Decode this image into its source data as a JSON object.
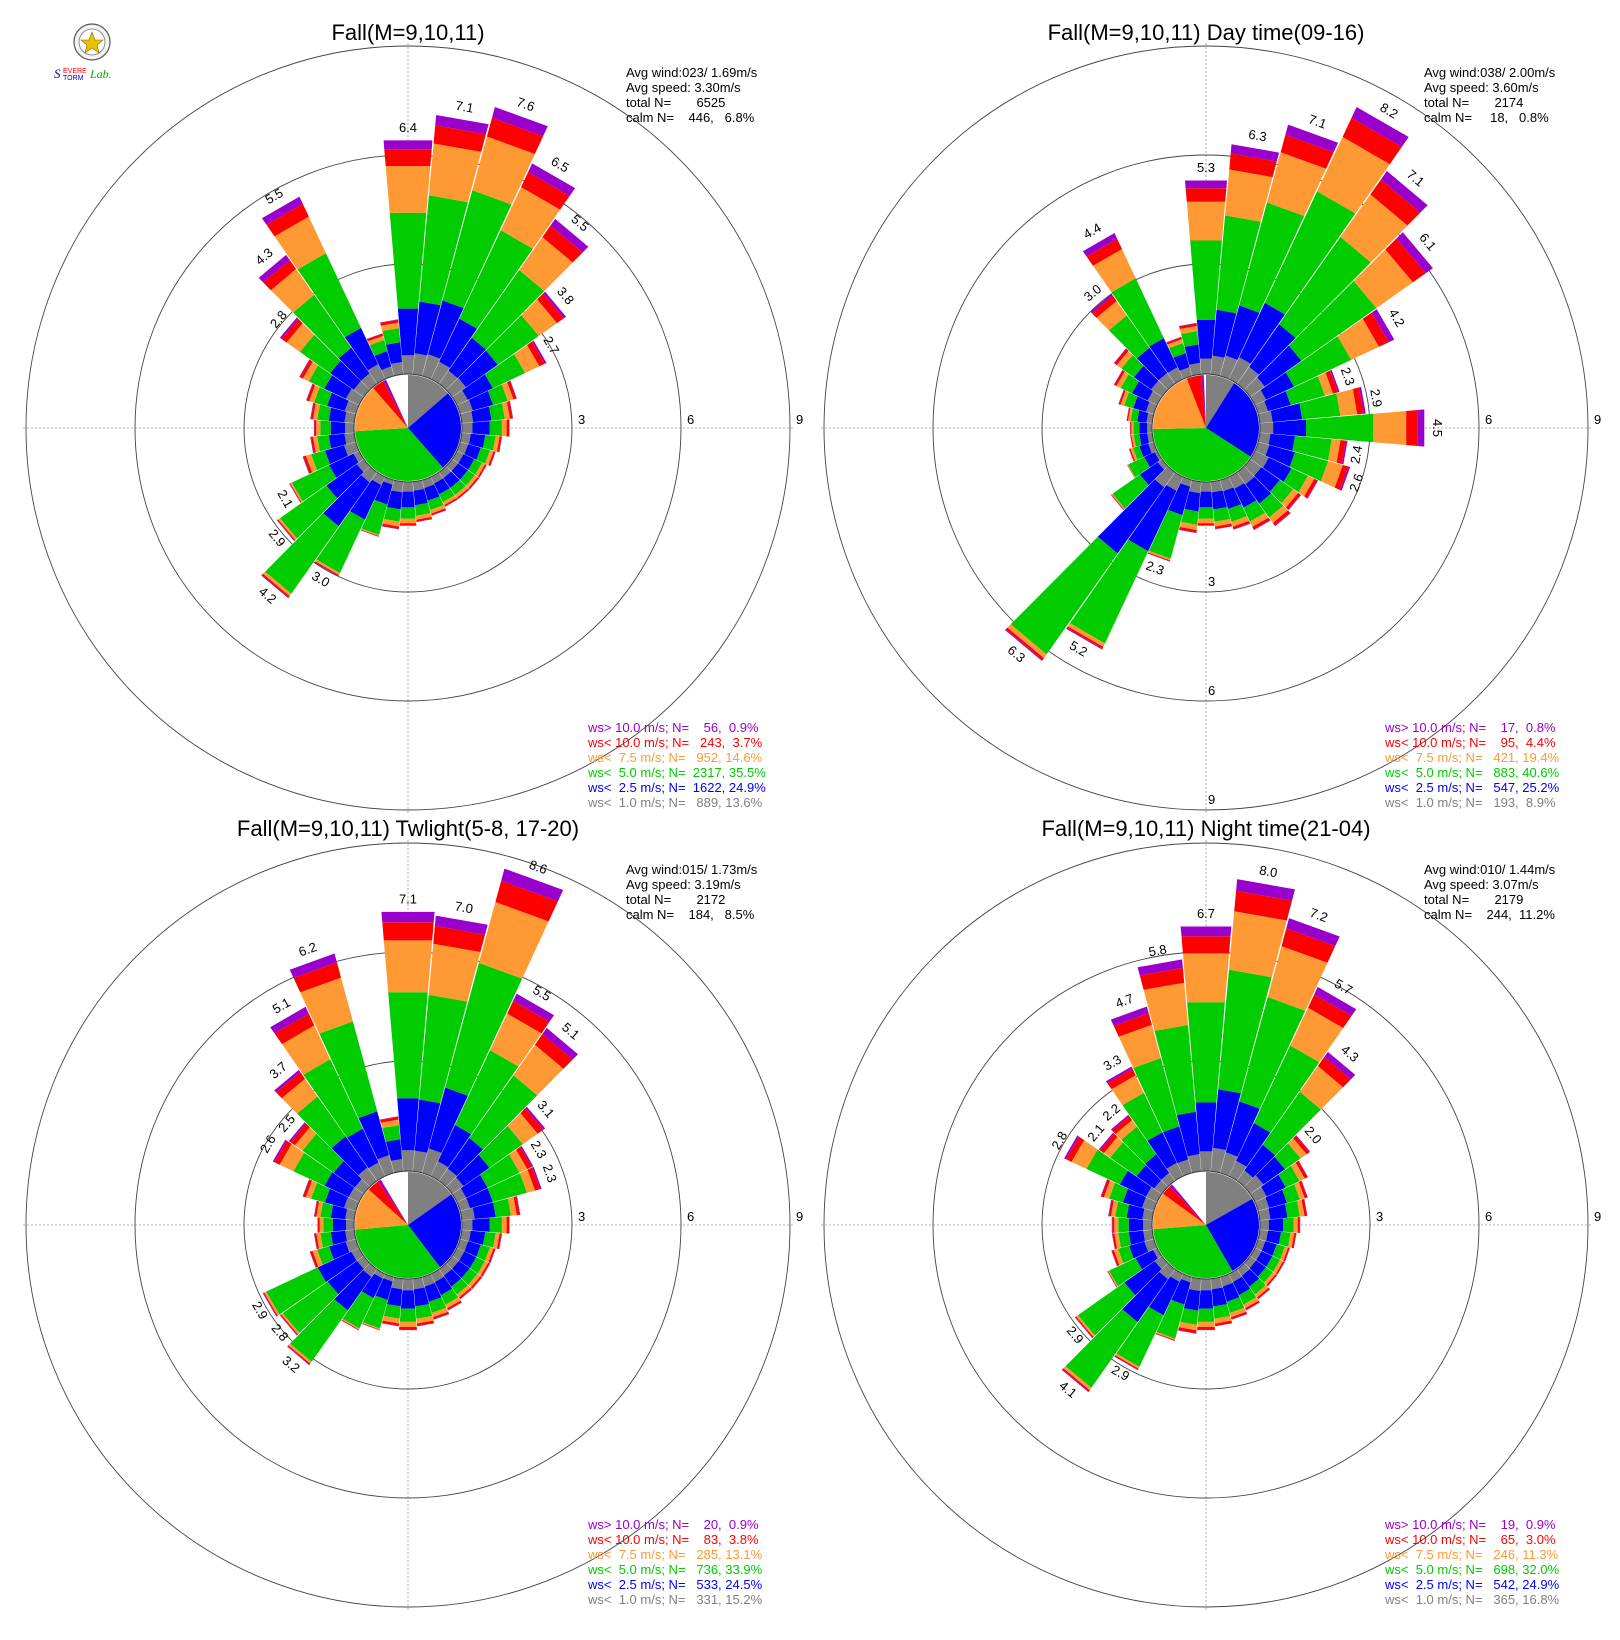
{
  "colors": {
    "gt10": "#9900cc",
    "lt10": "#ff0000",
    "lt7_5": "#ff9933",
    "lt5": "#00cc00",
    "lt2_5": "#0000ff",
    "lt1": "#808080"
  },
  "logo": {
    "text": "Severe Storm Lab."
  },
  "chart_data": [
    {
      "type": "windrose",
      "title": "Fall(M=9,10,11)",
      "rings": [
        3,
        6,
        9
      ],
      "stats": [
        "Avg wind:023/ 1.69m/s",
        "Avg speed: 3.30m/s",
        "total N=       6525",
        "calm N=    446,   6.8%"
      ],
      "legend": [
        {
          "cls": "gt10",
          "text": "ws> 10.0 m/s; N=    56,  0.9%"
        },
        {
          "cls": "lt10",
          "text": "ws< 10.0 m/s; N=   243,  3.7%"
        },
        {
          "cls": "lt7_5",
          "text": "ws<  7.5 m/s; N=   952, 14.6%"
        },
        {
          "cls": "lt5",
          "text": "ws<  5.0 m/s; N=  2317, 35.5%"
        },
        {
          "cls": "lt2_5",
          "text": "ws<  2.5 m/s; N=  1622, 24.9%"
        },
        {
          "cls": "lt1",
          "text": "ws<  1.0 m/s; N=   889, 13.6%"
        }
      ],
      "pie": [
        0.136,
        0.249,
        0.355,
        0.146,
        0.037,
        0.009
      ],
      "spokes": [
        {
          "dir": 0,
          "total": 6.4,
          "label": "6.4"
        },
        {
          "dir": 10,
          "total": 7.1,
          "label": "7.1"
        },
        {
          "dir": 20,
          "total": 7.6,
          "label": "7.6"
        },
        {
          "dir": 30,
          "total": 6.5,
          "label": "6.5"
        },
        {
          "dir": 40,
          "total": 5.5,
          "label": "5.5"
        },
        {
          "dir": 50,
          "total": 3.8,
          "label": "3.8"
        },
        {
          "dir": 60,
          "total": 2.7,
          "label": "2.7"
        },
        {
          "dir": 70,
          "total": 1.6
        },
        {
          "dir": 80,
          "total": 1.4
        },
        {
          "dir": 90,
          "total": 1.3
        },
        {
          "dir": 100,
          "total": 1.1
        },
        {
          "dir": 110,
          "total": 1.0
        },
        {
          "dir": 120,
          "total": 0.9
        },
        {
          "dir": 130,
          "total": 0.9
        },
        {
          "dir": 140,
          "total": 0.9
        },
        {
          "dir": 150,
          "total": 0.9
        },
        {
          "dir": 160,
          "total": 1.0
        },
        {
          "dir": 170,
          "total": 1.1
        },
        {
          "dir": 180,
          "total": 1.2
        },
        {
          "dir": 190,
          "total": 1.3
        },
        {
          "dir": 200,
          "total": 1.6
        },
        {
          "dir": 210,
          "total": 3.0,
          "label": "3.0"
        },
        {
          "dir": 220,
          "total": 4.2,
          "label": "4.2"
        },
        {
          "dir": 230,
          "total": 2.9,
          "label": "2.9"
        },
        {
          "dir": 240,
          "total": 2.1,
          "label": "2.1"
        },
        {
          "dir": 250,
          "total": 1.5
        },
        {
          "dir": 260,
          "total": 1.2
        },
        {
          "dir": 270,
          "total": 1.1
        },
        {
          "dir": 280,
          "total": 1.2
        },
        {
          "dir": 290,
          "total": 1.4
        },
        {
          "dir": 300,
          "total": 1.8
        },
        {
          "dir": 310,
          "total": 2.8,
          "label": "2.8"
        },
        {
          "dir": 320,
          "total": 4.3,
          "label": "4.3"
        },
        {
          "dir": 330,
          "total": 5.5,
          "label": "5.5"
        },
        {
          "dir": 340,
          "total": 1.2
        },
        {
          "dir": 350,
          "total": 1.5
        }
      ]
    },
    {
      "type": "windrose",
      "title": "Fall(M=9,10,11) Day time(09-16)",
      "rings": [
        3,
        6,
        9
      ],
      "stats": [
        "Avg wind:038/ 2.00m/s",
        "Avg speed: 3.60m/s",
        "total N=       2174",
        "calm N=     18,   0.8%"
      ],
      "legend": [
        {
          "cls": "gt10",
          "text": "ws> 10.0 m/s; N=    17,  0.8%"
        },
        {
          "cls": "lt10",
          "text": "ws< 10.0 m/s; N=    95,  4.4%"
        },
        {
          "cls": "lt7_5",
          "text": "ws<  7.5 m/s; N=   421, 19.4%"
        },
        {
          "cls": "lt5",
          "text": "ws<  5.0 m/s; N=   883, 40.6%"
        },
        {
          "cls": "lt2_5",
          "text": "ws<  2.5 m/s; N=   547, 25.2%"
        },
        {
          "cls": "lt1",
          "text": "ws<  1.0 m/s; N=   193,  8.9%"
        }
      ],
      "pie": [
        0.089,
        0.252,
        0.406,
        0.194,
        0.044,
        0.008
      ],
      "spokes": [
        {
          "dir": 0,
          "total": 5.3,
          "label": "5.3"
        },
        {
          "dir": 10,
          "total": 6.3,
          "label": "6.3"
        },
        {
          "dir": 20,
          "total": 7.1,
          "label": "7.1"
        },
        {
          "dir": 30,
          "total": 8.2,
          "label": "8.2"
        },
        {
          "dir": 40,
          "total": 7.1,
          "label": "7.1"
        },
        {
          "dir": 50,
          "total": 6.1,
          "label": "6.1"
        },
        {
          "dir": 60,
          "total": 4.2,
          "label": "4.2"
        },
        {
          "dir": 70,
          "total": 2.3,
          "label": "2.3"
        },
        {
          "dir": 80,
          "total": 2.9,
          "label": "2.9"
        },
        {
          "dir": 90,
          "total": 4.5,
          "label": "4.5"
        },
        {
          "dir": 100,
          "total": 2.4,
          "label": "2.4"
        },
        {
          "dir": 110,
          "total": 2.6,
          "label": "2.6"
        },
        {
          "dir": 120,
          "total": 1.9
        },
        {
          "dir": 130,
          "total": 1.7
        },
        {
          "dir": 140,
          "total": 1.8
        },
        {
          "dir": 150,
          "total": 1.6
        },
        {
          "dir": 160,
          "total": 1.4
        },
        {
          "dir": 170,
          "total": 1.3
        },
        {
          "dir": 180,
          "total": 1.2
        },
        {
          "dir": 190,
          "total": 1.4
        },
        {
          "dir": 200,
          "total": 2.3,
          "label": "2.3"
        },
        {
          "dir": 210,
          "total": 5.2,
          "label": "5.2"
        },
        {
          "dir": 220,
          "total": 6.3,
          "label": "6.3"
        },
        {
          "dir": 230,
          "total": 1.7
        },
        {
          "dir": 240,
          "total": 0.9
        },
        {
          "dir": 250,
          "total": 0.7
        },
        {
          "dir": 260,
          "total": 0.6
        },
        {
          "dir": 270,
          "total": 0.6
        },
        {
          "dir": 280,
          "total": 0.7
        },
        {
          "dir": 290,
          "total": 1.0
        },
        {
          "dir": 300,
          "total": 1.3
        },
        {
          "dir": 310,
          "total": 1.6
        },
        {
          "dir": 320,
          "total": 3.0,
          "label": "3.0"
        },
        {
          "dir": 330,
          "total": 4.4,
          "label": "4.4"
        },
        {
          "dir": 340,
          "total": 1.1
        },
        {
          "dir": 350,
          "total": 1.4
        }
      ]
    },
    {
      "type": "windrose",
      "title": "Fall(M=9,10,11) Twlight(5-8, 17-20)",
      "rings": [
        3,
        6,
        9
      ],
      "stats": [
        "Avg wind:015/ 1.73m/s",
        "Avg speed: 3.19m/s",
        "total N=       2172",
        "calm N=    184,   8.5%"
      ],
      "legend": [
        {
          "cls": "gt10",
          "text": "ws> 10.0 m/s; N=    20,  0.9%"
        },
        {
          "cls": "lt10",
          "text": "ws< 10.0 m/s; N=    83,  3.8%"
        },
        {
          "cls": "lt7_5",
          "text": "ws<  7.5 m/s; N=   285, 13.1%"
        },
        {
          "cls": "lt5",
          "text": "ws<  5.0 m/s; N=   736, 33.9%"
        },
        {
          "cls": "lt2_5",
          "text": "ws<  2.5 m/s; N=   533, 24.5%"
        },
        {
          "cls": "lt1",
          "text": "ws<  1.0 m/s; N=   331, 15.2%"
        }
      ],
      "pie": [
        0.152,
        0.245,
        0.339,
        0.131,
        0.038,
        0.009
      ],
      "spokes": [
        {
          "dir": 0,
          "total": 7.1,
          "label": "7.1"
        },
        {
          "dir": 10,
          "total": 7.0,
          "label": "7.0"
        },
        {
          "dir": 20,
          "total": 8.6,
          "label": "8.6"
        },
        {
          "dir": 30,
          "total": 5.5,
          "label": "5.5"
        },
        {
          "dir": 40,
          "total": 5.1,
          "label": "5.1"
        },
        {
          "dir": 50,
          "total": 3.1,
          "label": "3.1"
        },
        {
          "dir": 60,
          "total": 2.3,
          "label": "2.3"
        },
        {
          "dir": 70,
          "total": 2.3,
          "label": "2.3"
        },
        {
          "dir": 80,
          "total": 1.6
        },
        {
          "dir": 90,
          "total": 1.3
        },
        {
          "dir": 100,
          "total": 1.1
        },
        {
          "dir": 110,
          "total": 1.0
        },
        {
          "dir": 120,
          "total": 1.0
        },
        {
          "dir": 130,
          "total": 1.0
        },
        {
          "dir": 140,
          "total": 1.0
        },
        {
          "dir": 150,
          "total": 1.1
        },
        {
          "dir": 160,
          "total": 1.2
        },
        {
          "dir": 170,
          "total": 1.3
        },
        {
          "dir": 180,
          "total": 1.4
        },
        {
          "dir": 190,
          "total": 1.3
        },
        {
          "dir": 200,
          "total": 1.5
        },
        {
          "dir": 210,
          "total": 1.7
        },
        {
          "dir": 220,
          "total": 3.2,
          "label": "3.2"
        },
        {
          "dir": 230,
          "total": 2.8,
          "label": "2.8"
        },
        {
          "dir": 240,
          "total": 2.9,
          "label": "2.9"
        },
        {
          "dir": 250,
          "total": 1.3
        },
        {
          "dir": 260,
          "total": 1.1
        },
        {
          "dir": 270,
          "total": 1.0
        },
        {
          "dir": 280,
          "total": 1.1
        },
        {
          "dir": 290,
          "total": 1.5
        },
        {
          "dir": 300,
          "total": 2.6,
          "label": "2.6"
        },
        {
          "dir": 310,
          "total": 2.5,
          "label": "2.5"
        },
        {
          "dir": 320,
          "total": 3.7,
          "label": "3.7"
        },
        {
          "dir": 330,
          "total": 5.1,
          "label": "5.1"
        },
        {
          "dir": 340,
          "total": 6.2,
          "label": "6.2"
        },
        {
          "dir": 350,
          "total": 1.5
        }
      ]
    },
    {
      "type": "windrose",
      "title": "Fall(M=9,10,11) Night time(21-04)",
      "rings": [
        3,
        6,
        9
      ],
      "stats": [
        "Avg wind:010/ 1.44m/s",
        "Avg speed: 3.07m/s",
        "total N=       2179",
        "calm N=    244,  11.2%"
      ],
      "legend": [
        {
          "cls": "gt10",
          "text": "ws> 10.0 m/s; N=    19,  0.9%"
        },
        {
          "cls": "lt10",
          "text": "ws< 10.0 m/s; N=    65,  3.0%"
        },
        {
          "cls": "lt7_5",
          "text": "ws<  7.5 m/s; N=   246, 11.3%"
        },
        {
          "cls": "lt5",
          "text": "ws<  5.0 m/s; N=   698, 32.0%"
        },
        {
          "cls": "lt2_5",
          "text": "ws<  2.5 m/s; N=   542, 24.9%"
        },
        {
          "cls": "lt1",
          "text": "ws<  1.0 m/s; N=   365, 16.8%"
        }
      ],
      "pie": [
        0.168,
        0.249,
        0.32,
        0.113,
        0.03,
        0.009
      ],
      "spokes": [
        {
          "dir": 0,
          "total": 6.7,
          "label": "6.7"
        },
        {
          "dir": 10,
          "total": 8.0,
          "label": "8.0"
        },
        {
          "dir": 20,
          "total": 7.2,
          "label": "7.2"
        },
        {
          "dir": 30,
          "total": 5.7,
          "label": "5.7"
        },
        {
          "dir": 40,
          "total": 4.3,
          "label": "4.3"
        },
        {
          "dir": 50,
          "total": 2.0,
          "label": "2.0"
        },
        {
          "dir": 60,
          "total": 1.6
        },
        {
          "dir": 70,
          "total": 1.4
        },
        {
          "dir": 80,
          "total": 1.3
        },
        {
          "dir": 90,
          "total": 1.1
        },
        {
          "dir": 100,
          "total": 1.0
        },
        {
          "dir": 110,
          "total": 0.9
        },
        {
          "dir": 120,
          "total": 0.9
        },
        {
          "dir": 130,
          "total": 0.9
        },
        {
          "dir": 140,
          "total": 1.0
        },
        {
          "dir": 150,
          "total": 1.1
        },
        {
          "dir": 160,
          "total": 1.2
        },
        {
          "dir": 170,
          "total": 1.3
        },
        {
          "dir": 180,
          "total": 1.4
        },
        {
          "dir": 190,
          "total": 1.5
        },
        {
          "dir": 200,
          "total": 1.8
        },
        {
          "dir": 210,
          "total": 2.9,
          "label": "2.9"
        },
        {
          "dir": 220,
          "total": 4.1,
          "label": "4.1"
        },
        {
          "dir": 230,
          "total": 2.9,
          "label": "2.9"
        },
        {
          "dir": 240,
          "total": 1.5
        },
        {
          "dir": 250,
          "total": 1.2
        },
        {
          "dir": 260,
          "total": 1.1
        },
        {
          "dir": 270,
          "total": 1.1
        },
        {
          "dir": 280,
          "total": 1.2
        },
        {
          "dir": 290,
          "total": 1.5
        },
        {
          "dir": 300,
          "total": 2.8,
          "label": "2.8"
        },
        {
          "dir": 310,
          "total": 2.1,
          "label": "2.1"
        },
        {
          "dir": 320,
          "total": 2.2,
          "label": "2.2"
        },
        {
          "dir": 330,
          "total": 3.3,
          "label": "3.3"
        },
        {
          "dir": 340,
          "total": 4.7,
          "label": "4.7"
        },
        {
          "dir": 350,
          "total": 5.8,
          "label": "5.8"
        }
      ]
    }
  ]
}
